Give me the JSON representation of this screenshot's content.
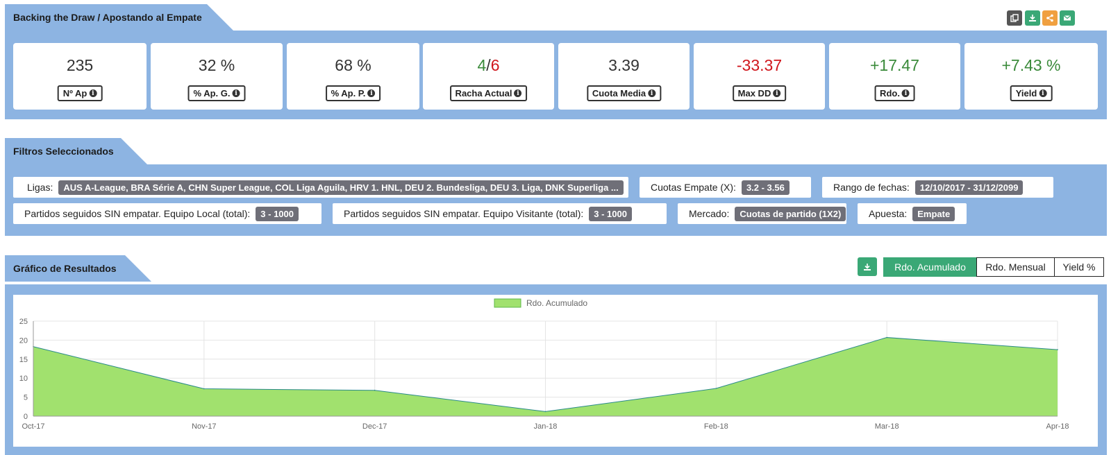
{
  "header": {
    "title": "Backing the Draw / Apostando al Empate",
    "actions": [
      {
        "name": "copy-icon",
        "color": "#555555"
      },
      {
        "name": "download-icon",
        "color": "#3aa876"
      },
      {
        "name": "share-icon",
        "color": "#f0a040"
      },
      {
        "name": "email-icon",
        "color": "#3aa876"
      }
    ]
  },
  "stats": [
    {
      "value": "235",
      "label": "Nº Ap"
    },
    {
      "value": "32 %",
      "label": "% Ap. G."
    },
    {
      "value": "68 %",
      "label": "% Ap. P."
    },
    {
      "value_win": "4",
      "value_sep": "/",
      "value_loss": "6",
      "label": "Racha Actual"
    },
    {
      "value": "3.39",
      "label": "Cuota Media"
    },
    {
      "value": "-33.37",
      "label": "Max DD"
    },
    {
      "value": "+17.47",
      "label": "Rdo."
    },
    {
      "value": "+7.43 %",
      "label": "Yield"
    }
  ],
  "filters": {
    "title": "Filtros Seleccionados",
    "items": [
      {
        "label": "Ligas:",
        "value": "AUS A-League, BRA Série A, CHN Super League, COL Liga Aguila, HRV 1. HNL, DEU 2. Bundesliga, DEU 3. Liga, DNK Superliga ..."
      },
      {
        "label": "Cuotas Empate (X):",
        "value": "3.2 - 3.56"
      },
      {
        "label": "Rango de fechas:",
        "value": "12/10/2017 - 31/12/2099"
      },
      {
        "label": "Partidos seguidos SIN empatar. Equipo Local (total):",
        "value": "3 - 1000"
      },
      {
        "label": "Partidos seguidos SIN empatar. Equipo Visitante (total):",
        "value": "3 - 1000"
      },
      {
        "label": "Mercado:",
        "value": "Cuotas de partido (1X2)"
      },
      {
        "label": "Apuesta:",
        "value": "Empate"
      }
    ]
  },
  "results": {
    "title": "Gráfico de Resultados",
    "tabs": [
      "Rdo. Acumulado",
      "Rdo. Mensual",
      "Yield %"
    ],
    "active_tab": "Rdo. Acumulado"
  },
  "chart_data": {
    "type": "area",
    "categories": [
      "Oct-17",
      "Nov-17",
      "Dec-17",
      "Jan-18",
      "Feb-18",
      "Mar-18",
      "Apr-18"
    ],
    "series": [
      {
        "name": "Rdo. Acumulado",
        "values": [
          18.3,
          7.2,
          6.8,
          1.2,
          7.3,
          20.7,
          17.5
        ],
        "color": "#a1e16e",
        "line_color": "#2a8a8a"
      }
    ],
    "yticks": [
      0,
      5,
      10,
      15,
      20,
      25
    ],
    "ylim": [
      0,
      25
    ],
    "legend_position": "top-center",
    "grid": true
  }
}
